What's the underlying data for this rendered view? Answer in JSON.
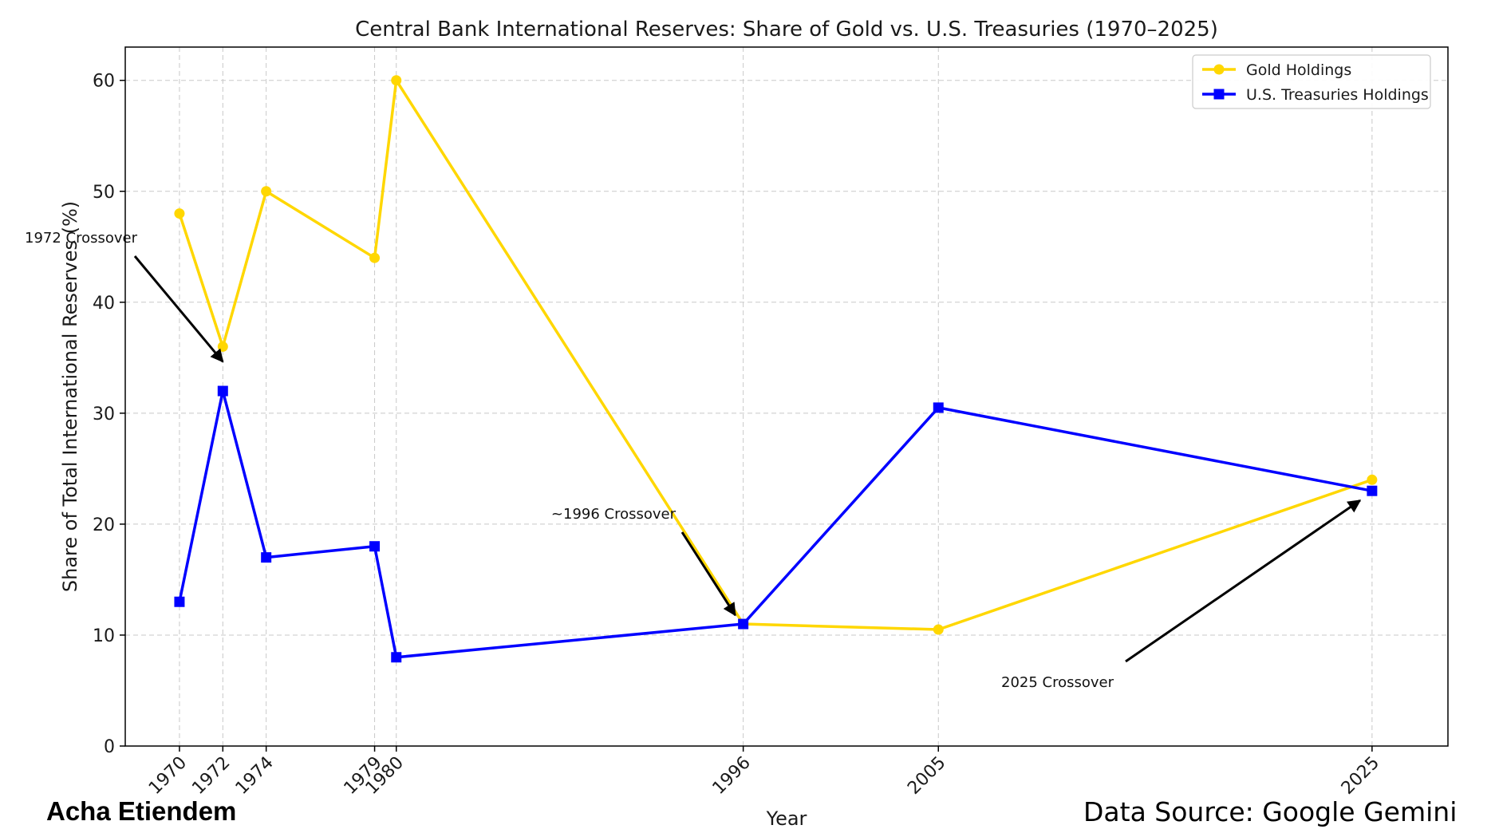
{
  "footer": {
    "author": "Acha Etiendem",
    "source": "Data Source: Google Gemini"
  },
  "chart_data": {
    "type": "line",
    "title": "Central Bank International Reserves: Share of Gold vs. U.S. Treasuries (1970–2025)",
    "xlabel": "Year",
    "ylabel": "Share of Total International Reserves (%)",
    "x": [
      1970,
      1972,
      1974,
      1979,
      1980,
      1996,
      2005,
      2025
    ],
    "x_tick_labels": [
      "1970",
      "1972",
      "1974",
      "1979",
      "1980",
      "1996",
      "2005",
      "2025"
    ],
    "xlim": [
      1967.5,
      2028.5
    ],
    "ylim": [
      0,
      63
    ],
    "y_ticks": [
      0,
      10,
      20,
      30,
      40,
      50,
      60
    ],
    "grid": true,
    "legend_position": "top-right",
    "series": [
      {
        "name": "Gold Holdings",
        "color": "#FFD700",
        "marker": "circle",
        "values": [
          48,
          36,
          50,
          44,
          60,
          11,
          10.5,
          24
        ]
      },
      {
        "name": "U.S. Treasuries Holdings",
        "color": "#0000FF",
        "marker": "square",
        "values": [
          13,
          32,
          17,
          18,
          8,
          11,
          30.5,
          23
        ]
      }
    ],
    "annotations": [
      {
        "text": "1972 Crossover",
        "x": 1972,
        "y": 34.5
      },
      {
        "text": "~1996 Crossover",
        "x": 1996,
        "y": 11
      },
      {
        "text": "2025 Crossover",
        "x": 2025,
        "y": 23
      }
    ]
  }
}
